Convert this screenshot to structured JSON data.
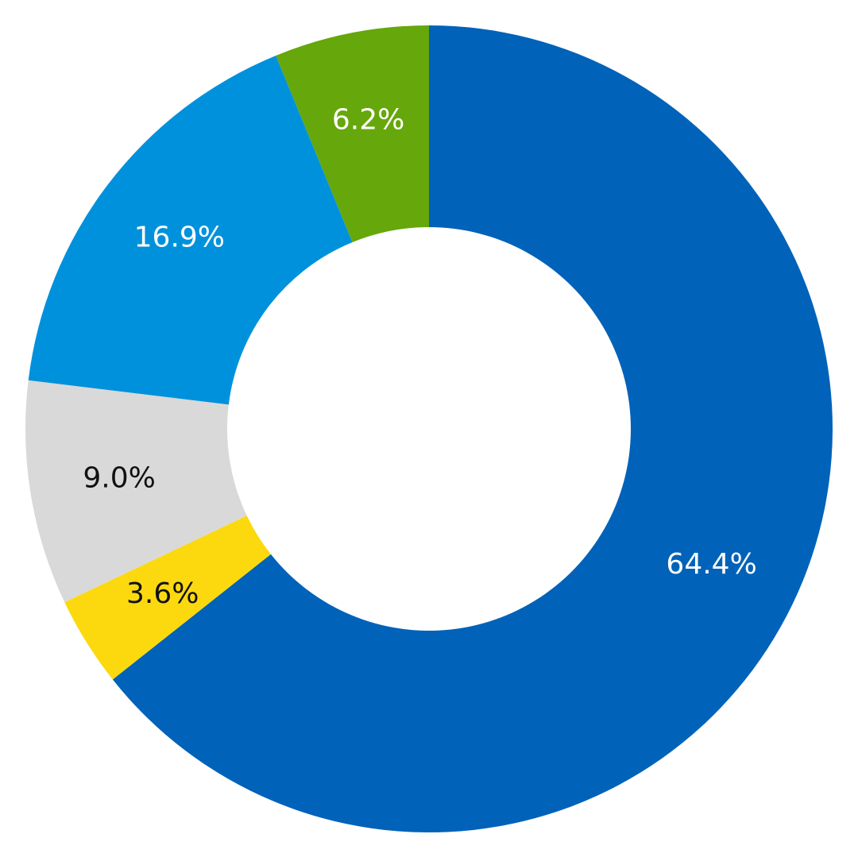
{
  "chart_data": {
    "type": "donut",
    "values": [
      64.4,
      3.6,
      9.0,
      16.9,
      6.2
    ],
    "value_labels": [
      "64.4%",
      "3.6%",
      "9.0%",
      "16.9%",
      "6.2%"
    ],
    "colors": [
      "#0062b8",
      "#fcd90f",
      "#d9d9d9",
      "#0091dc",
      "#66a70b"
    ],
    "label_colors": [
      "#ffffff",
      "#111111",
      "#111111",
      "#ffffff",
      "#ffffff"
    ]
  }
}
